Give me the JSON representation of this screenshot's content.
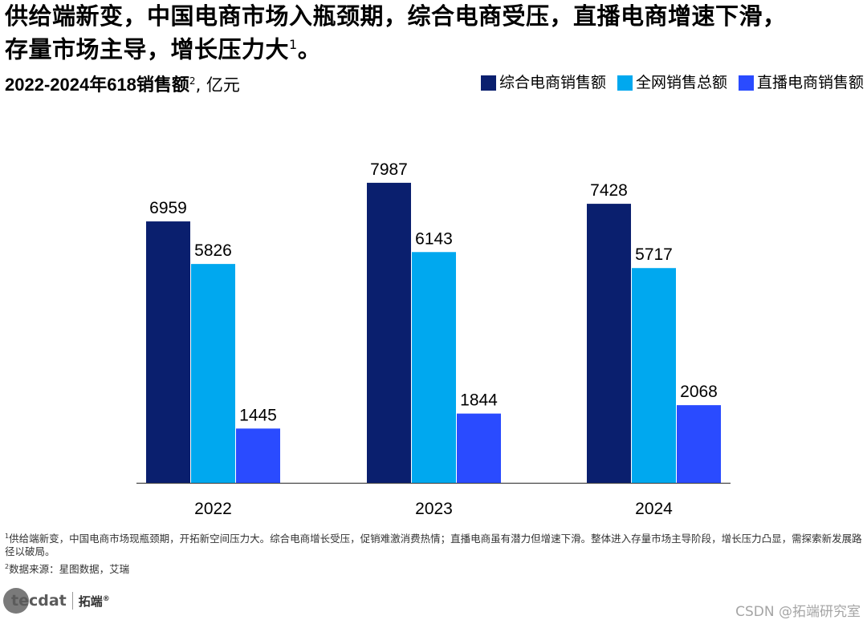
{
  "title": {
    "line1": "供给端新变，中国电商市场入瓶颈期，综合电商受压，直播电商增速下滑，",
    "line2": "存量市场主导，增长压力大",
    "sup": "1",
    "end": "。"
  },
  "subtitle": {
    "bold": "2022-2024年618销售额",
    "sup": "2",
    "unit": ", 亿元"
  },
  "chart_data": {
    "type": "bar",
    "title": "2022-2024年618销售额, 亿元",
    "categories": [
      "2022",
      "2023",
      "2024"
    ],
    "series": [
      {
        "name": "综合电商销售额",
        "color": "#0a1f6e",
        "values": [
          6959,
          7987,
          7428
        ]
      },
      {
        "name": "全网销售总额",
        "color": "#00a8ef",
        "values": [
          5826,
          6143,
          5717
        ]
      },
      {
        "name": "直播电商销售额",
        "color": "#2a4bff",
        "values": [
          1445,
          1844,
          2068
        ]
      }
    ],
    "ylim": [
      0,
      8000
    ],
    "grid": false,
    "legend_position": "top-right",
    "xlabel": "",
    "ylabel": ""
  },
  "footnotes": {
    "note1_sup": "1",
    "note1": "供给端新变，中国电商市场现瓶颈期，开拓新空间压力大。综合电商增长受压，促销难激消费热情；直播电商虽有潜力但增速下滑。整体进入存量市场主导阶段，增长压力凸显，需探索新发展路径以破局。",
    "note2_sup": "2",
    "note2": "数据来源：星图数据，艾瑞"
  },
  "logo": {
    "text": "tecdat",
    "cn": "拓端",
    "mark": "®"
  },
  "watermark": "CSDN @拓端研究室"
}
